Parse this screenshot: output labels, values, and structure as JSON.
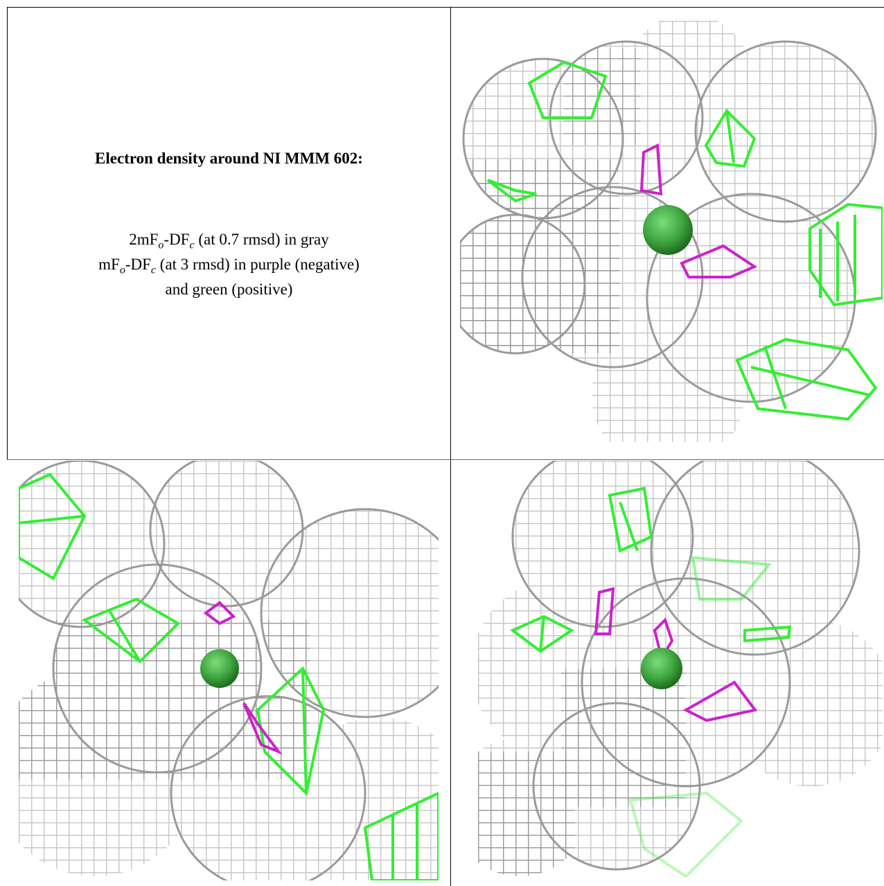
{
  "text_panel": {
    "title": "Electron density around NI MMM 602:",
    "lines": [
      [
        "2mF",
        "o",
        "-DF",
        "c",
        " (at 0.7 rmsd) in gray"
      ],
      [
        "mF",
        "o",
        "-DF",
        "c",
        " (at 3 rmsd) in purple (negative)"
      ],
      [
        "and green (positive)"
      ]
    ]
  }
}
